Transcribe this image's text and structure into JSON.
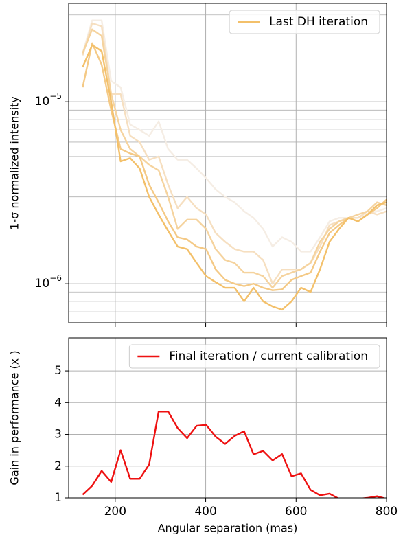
{
  "chart_data": [
    {
      "type": "line",
      "ylabel": "1-σ normalized intensity",
      "yscale": "log",
      "grid": true,
      "legend": "upper right",
      "xlim": [
        97,
        800
      ],
      "xticks": [
        200,
        400,
        600,
        800
      ],
      "ylim": [
        6.1e-07,
        3.47e-05
      ],
      "yticks": [
        {
          "value": 1e-06,
          "label": "10−6"
        },
        {
          "value": 1e-05,
          "label": "10−5"
        }
      ],
      "x": [
        128,
        149,
        170,
        191,
        212,
        233,
        254,
        275,
        296,
        317,
        338,
        359,
        380,
        401,
        422,
        443,
        464,
        485,
        506,
        527,
        548,
        569,
        590,
        611,
        632,
        653,
        674,
        695,
        716,
        737,
        758,
        779,
        800
      ],
      "series": [
        {
          "color": "#f5ede4",
          "values": [
            1.85e-05,
            2.8e-05,
            2.8e-05,
            1.3e-05,
            1.2e-05,
            7.5e-06,
            7e-06,
            6.5e-06,
            7.8e-06,
            5.5e-06,
            4.8e-06,
            4.8e-06,
            4.3e-06,
            3.8e-06,
            3.3e-06,
            3e-06,
            2.8e-06,
            2.5e-06,
            2.3e-06,
            2e-06,
            1.6e-06,
            1.8e-06,
            1.7e-06,
            1.5e-06,
            1.5e-06,
            1.8e-06,
            2.2e-06,
            2.3e-06,
            2.3e-06,
            2.3e-06,
            2.4e-06,
            2.5e-06,
            2.6e-06
          ]
        },
        {
          "color": "#f6dfc0",
          "values": [
            1.8e-05,
            2.7e-05,
            2.6e-05,
            1.1e-05,
            1.1e-05,
            6.5e-06,
            6e-06,
            4.8e-06,
            5e-06,
            3.5e-06,
            2.6e-06,
            3e-06,
            2.6e-06,
            2.4e-06,
            1.9e-06,
            1.7e-06,
            1.55e-06,
            1.5e-06,
            1.5e-06,
            1.35e-06,
            1e-06,
            1.2e-06,
            1.2e-06,
            1.2e-06,
            1.3e-06,
            1.6e-06,
            2.1e-06,
            2.2e-06,
            2.3e-06,
            2.3e-06,
            2.5e-06,
            2.4e-06,
            2.5e-06
          ]
        },
        {
          "color": "#f5d39e",
          "values": [
            1.85e-05,
            2.5e-05,
            2.3e-05,
            1.1e-05,
            7e-06,
            5.5e-06,
            5e-06,
            4.5e-06,
            4.2e-06,
            3e-06,
            2e-06,
            2.25e-06,
            2.25e-06,
            2e-06,
            1.55e-06,
            1.35e-06,
            1.3e-06,
            1.15e-06,
            1.15e-06,
            1.1e-06,
            9.5e-07,
            1.1e-06,
            1.15e-06,
            1.2e-06,
            1.3e-06,
            1.7e-06,
            2e-06,
            2.2e-06,
            2.3e-06,
            2.4e-06,
            2.5e-06,
            2.8e-06,
            2.7e-06
          ]
        },
        {
          "color": "#f4c985",
          "values": [
            1.2e-05,
            2.1e-05,
            1.6e-05,
            9e-06,
            5.5e-06,
            5.2e-06,
            5e-06,
            3.5e-06,
            2.8e-06,
            2.2e-06,
            1.8e-06,
            1.75e-06,
            1.6e-06,
            1.55e-06,
            1.2e-06,
            1.05e-06,
            1e-06,
            9.7e-07,
            1e-06,
            9.5e-07,
            9.2e-07,
            9.3e-07,
            1.05e-06,
            1.1e-06,
            1.15e-06,
            1.5e-06,
            1.9e-06,
            2.1e-06,
            2.3e-06,
            2.2e-06,
            2.4e-06,
            2.6e-06,
            2.9e-06
          ]
        },
        {
          "name": "Last DH iteration",
          "color": "#f3c06a",
          "values": [
            1.55e-05,
            2.05e-05,
            1.9e-05,
            1e-05,
            4.7e-06,
            4.9e-06,
            4.3e-06,
            3e-06,
            2.4e-06,
            1.95e-06,
            1.6e-06,
            1.55e-06,
            1.3e-06,
            1.1e-06,
            1.02e-06,
            9.5e-07,
            9.5e-07,
            8e-07,
            9.5e-07,
            8e-07,
            7.5e-07,
            7.2e-07,
            8e-07,
            9.5e-07,
            9e-07,
            1.2e-06,
            1.7e-06,
            2e-06,
            2.3e-06,
            2.2e-06,
            2.4e-06,
            2.7e-06,
            2.8e-06
          ]
        }
      ]
    },
    {
      "type": "line",
      "xlabel": "Angular separation (mas)",
      "ylabel": "Gain in performance (x )",
      "grid": true,
      "legend": "upper right",
      "xlim": [
        97,
        800
      ],
      "xticks": [
        200,
        400,
        600,
        800
      ],
      "ylim": [
        1,
        6.04
      ],
      "yticks": [
        1,
        2,
        3,
        4,
        5
      ],
      "x": [
        128,
        149,
        170,
        191,
        212,
        233,
        254,
        275,
        296,
        317,
        338,
        359,
        380,
        401,
        422,
        443,
        464,
        485,
        506,
        527,
        548,
        569,
        590,
        611,
        632,
        653,
        674,
        695,
        716,
        737,
        758,
        779,
        800
      ],
      "series": [
        {
          "name": "Final iteration / current calibration",
          "color": "#ee1111",
          "values": [
            1.1,
            1.38,
            1.85,
            1.5,
            2.5,
            1.6,
            1.6,
            2.05,
            3.72,
            3.72,
            3.2,
            2.88,
            3.27,
            3.3,
            2.93,
            2.7,
            2.95,
            3.1,
            2.37,
            2.48,
            2.18,
            2.38,
            1.68,
            1.77,
            1.25,
            1.08,
            1.13,
            0.97,
            0.95,
            0.97,
            1.0,
            1.05,
            0.97
          ]
        }
      ]
    }
  ]
}
